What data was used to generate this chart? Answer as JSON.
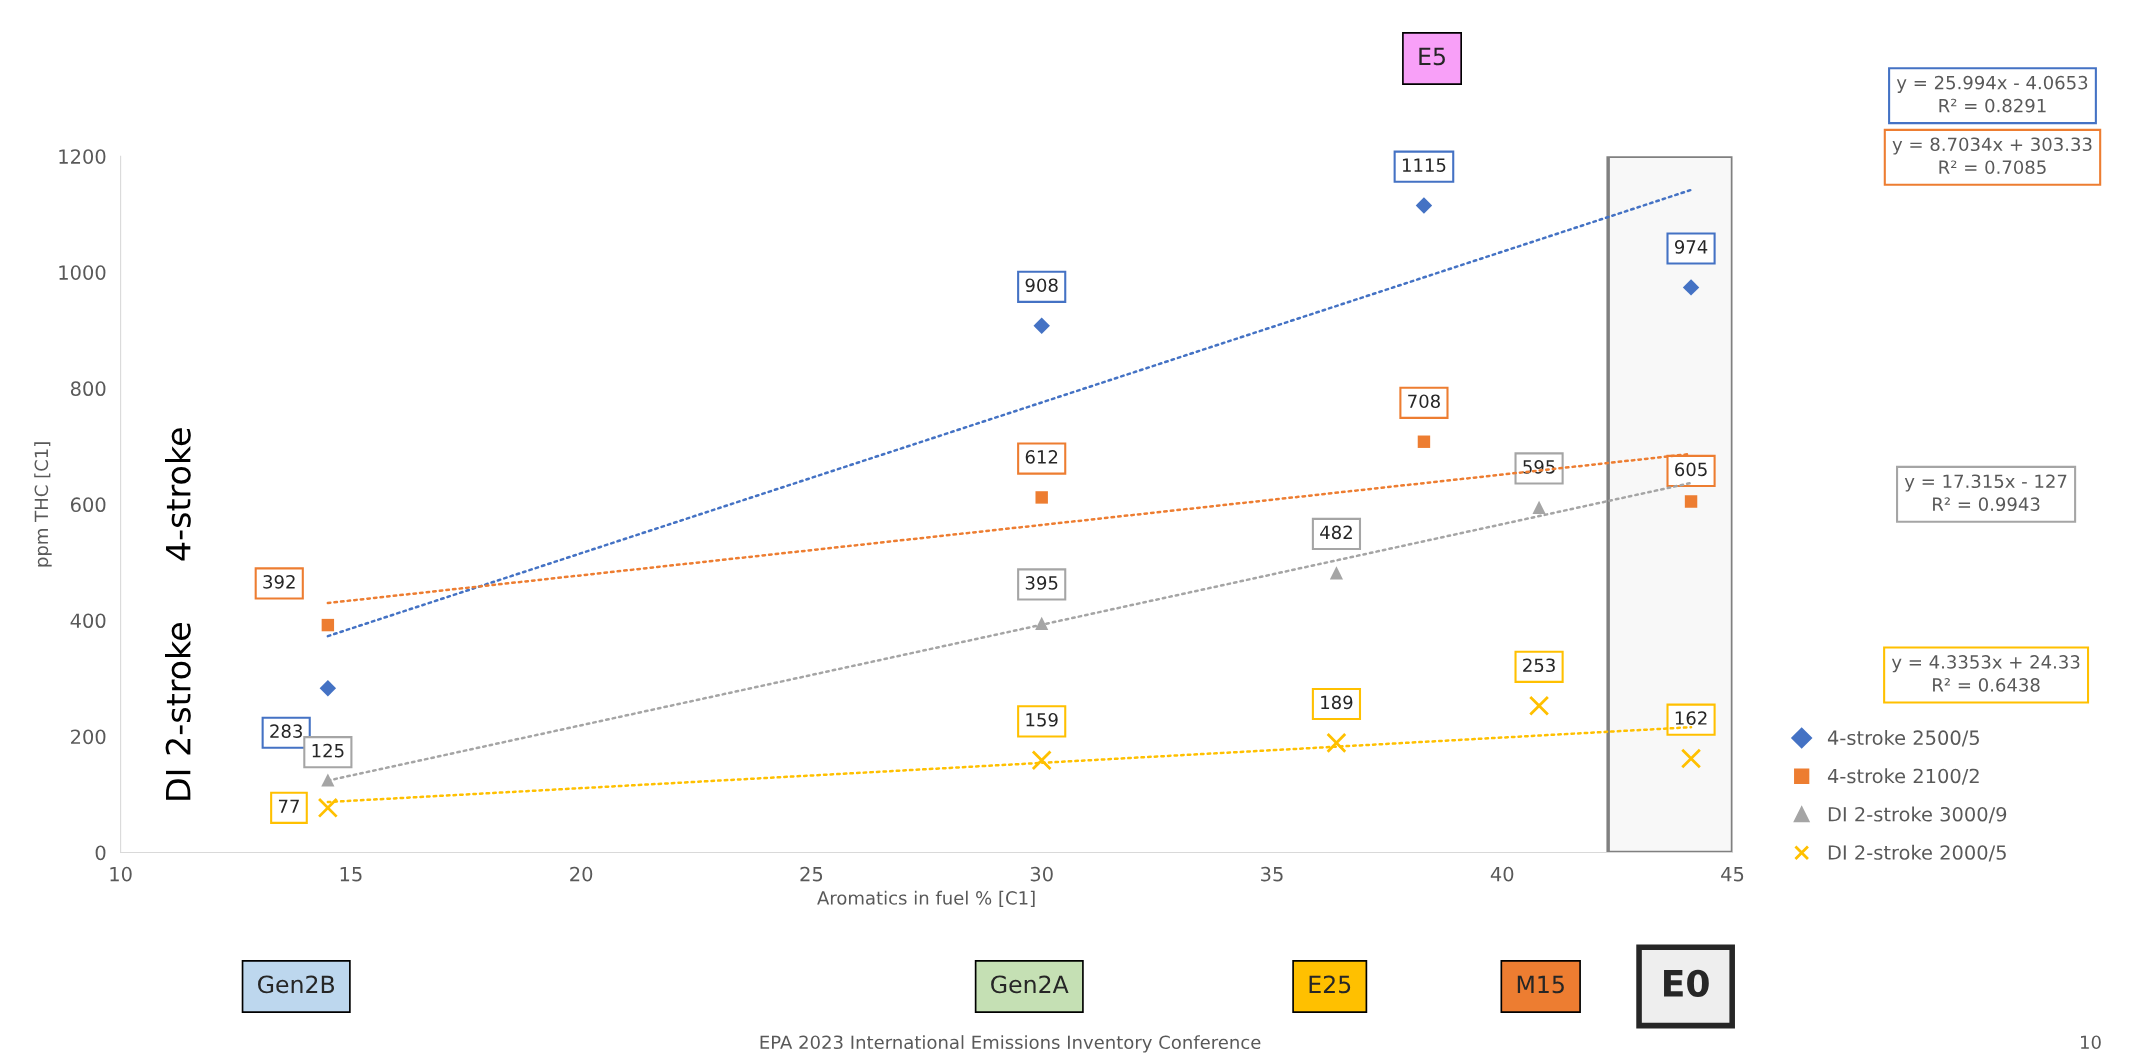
{
  "chart_data": {
    "type": "scatter",
    "xlabel": "Aromatics in fuel % [C1]",
    "ylabel": "ppm THC [C1]",
    "xlim": [
      10,
      45
    ],
    "xticks": [
      10,
      15,
      20,
      25,
      30,
      35,
      40,
      45
    ],
    "ylim": [
      0,
      1200
    ],
    "yticks": [
      0,
      200,
      400,
      600,
      800,
      1000,
      1200
    ],
    "grid": false,
    "legend": "right",
    "series": [
      {
        "name": "4-stroke 2500/5",
        "type": "scatter",
        "marker": "diamond",
        "color": "#4472c4",
        "x": [
          14.5,
          30,
          38.3,
          44.1
        ],
        "values": [
          283,
          908,
          1115,
          974
        ],
        "value_labels": [
          "283",
          "908",
          "1115",
          "974"
        ]
      },
      {
        "name": "4-stroke 2100/2",
        "type": "scatter",
        "marker": "square",
        "color": "#ed7d31",
        "x": [
          14.5,
          30,
          38.3,
          44.1
        ],
        "values": [
          392,
          612,
          708,
          605
        ],
        "value_labels": [
          "392",
          "612",
          "708",
          "605"
        ]
      },
      {
        "name": "DI 2-stroke 3000/9",
        "type": "scatter",
        "marker": "triangle",
        "color": "#a5a5a5",
        "x": [
          14.5,
          30,
          36.4,
          40.8
        ],
        "values": [
          125,
          395,
          482,
          595
        ],
        "value_labels": [
          "125",
          "395",
          "482",
          "595"
        ]
      },
      {
        "name": "DI 2-stroke 2000/5",
        "type": "scatter",
        "marker": "cross",
        "color": "#ffc000",
        "x": [
          14.5,
          30,
          36.4,
          40.8,
          44.1
        ],
        "values": [
          77,
          159,
          189,
          253,
          162
        ],
        "value_labels": [
          "77",
          "159",
          "189",
          "253",
          "162"
        ]
      },
      {
        "type": "line",
        "line_style": "dotted",
        "color": "#4472c4",
        "x": [
          14.5,
          44.1
        ],
        "values": [
          373,
          1142
        ]
      },
      {
        "type": "line",
        "line_style": "dotted",
        "color": "#ed7d31",
        "x": [
          14.5,
          44.1
        ],
        "values": [
          430,
          687
        ]
      },
      {
        "type": "line",
        "line_style": "dotted",
        "color": "#a5a5a5",
        "x": [
          14.5,
          44.1
        ],
        "values": [
          124,
          637
        ]
      },
      {
        "type": "line",
        "line_style": "dotted",
        "color": "#ffc000",
        "x": [
          14.5,
          44.1
        ],
        "values": [
          87,
          216
        ]
      }
    ],
    "bands": [
      {
        "axis": "x",
        "from": 42.3,
        "to": 45,
        "color": "#f8f8f8"
      }
    ],
    "annotations": [
      "y = 25.994x - 4.0653\nR² = 0.8291",
      "y = 8.7034x + 303.33\nR² = 0.7085",
      "y = 17.315x - 127\nR² = 0.9943",
      "y = 4.3353x + 24.33\nR² = 0.6438",
      "4-stroke",
      "DI 2-stroke",
      "E5",
      "Gen2B",
      "Gen2A",
      "E25",
      "M15",
      "E0",
      "EPA 2023 International Emissions Inventory Conference",
      "10"
    ]
  }
}
